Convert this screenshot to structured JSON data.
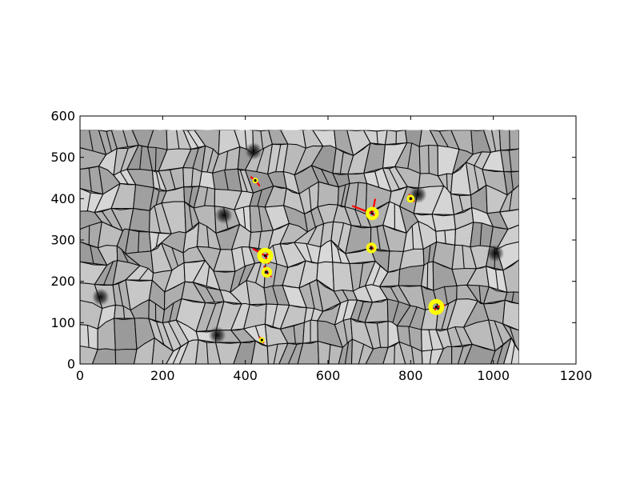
{
  "chart_data": {
    "type": "scatter",
    "title": "",
    "xlabel": "",
    "ylabel": "",
    "xlim": [
      0,
      1200
    ],
    "ylim": [
      0,
      600
    ],
    "x_ticks": [
      0,
      200,
      400,
      600,
      800,
      1000,
      1200
    ],
    "y_ticks": [
      0,
      100,
      200,
      300,
      400,
      500,
      600
    ],
    "tick_labels": {
      "x": [
        "0",
        "200",
        "400",
        "600",
        "800",
        "1000",
        "1200"
      ],
      "y": [
        "0",
        "100",
        "200",
        "300",
        "400",
        "500",
        "600"
      ]
    },
    "grid": false,
    "legend": "none",
    "image_extent": {
      "x": [
        0,
        1062
      ],
      "y": [
        0,
        566
      ]
    },
    "background_image": "grayscale grain-boundary micrograph",
    "marker_colors": {
      "points": "#ffff00",
      "vectors": "#ff0000",
      "boundaries": "#000000"
    },
    "dark_spots": [
      {
        "x": 50,
        "y": 162
      },
      {
        "x": 818,
        "y": 410
      },
      {
        "x": 1005,
        "y": 268
      },
      {
        "x": 348,
        "y": 360
      },
      {
        "x": 332,
        "y": 70
      },
      {
        "x": 420,
        "y": 515
      }
    ],
    "points": [
      {
        "x": 424,
        "y": 444,
        "r": 4,
        "vectors": [
          [
            424,
            444,
            414,
            452
          ],
          [
            424,
            444,
            434,
            432
          ]
        ]
      },
      {
        "x": 707,
        "y": 364,
        "r": 10,
        "vectors": [
          [
            707,
            364,
            660,
            382
          ],
          [
            707,
            364,
            714,
            398
          ],
          [
            707,
            364,
            718,
            355
          ]
        ]
      },
      {
        "x": 800,
        "y": 400,
        "r": 6,
        "vectors": [
          [
            800,
            400,
            797,
            410
          ],
          [
            800,
            400,
            808,
            394
          ]
        ]
      },
      {
        "x": 705,
        "y": 281,
        "r": 8,
        "vectors": [
          [
            705,
            281,
            702,
            292
          ],
          [
            705,
            281,
            714,
            277
          ]
        ]
      },
      {
        "x": 448,
        "y": 262,
        "r": 12,
        "vectors": [
          [
            448,
            262,
            420,
            278
          ],
          [
            448,
            262,
            456,
            244
          ],
          [
            448,
            262,
            462,
            270
          ]
        ]
      },
      {
        "x": 452,
        "y": 222,
        "r": 8,
        "vectors": [
          [
            452,
            222,
            446,
            236
          ],
          [
            452,
            222,
            462,
            212
          ]
        ]
      },
      {
        "x": 862,
        "y": 138,
        "r": 12,
        "vectors": [
          [
            862,
            138,
            856,
            124
          ],
          [
            862,
            138,
            882,
            142
          ]
        ]
      },
      {
        "x": 440,
        "y": 58,
        "r": 4,
        "vectors": [
          [
            440,
            58,
            435,
            64
          ],
          [
            440,
            58,
            444,
            52
          ]
        ]
      }
    ]
  }
}
